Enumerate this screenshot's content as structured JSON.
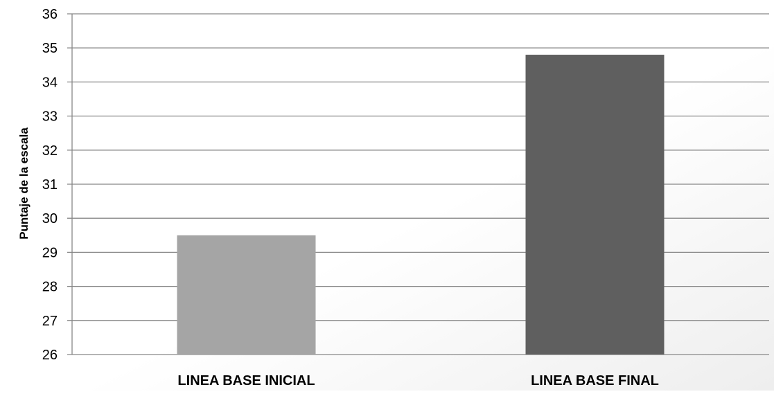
{
  "chart_data": {
    "type": "bar",
    "title": "",
    "xlabel": "",
    "ylabel": "Puntaje de la escala",
    "categories": [
      "LINEA BASE INICIAL",
      "LINEA BASE FINAL"
    ],
    "values": [
      29.5,
      34.8
    ],
    "bar_colors": [
      "#a5a5a5",
      "#5f5f5f"
    ],
    "ylim": [
      26,
      36
    ],
    "yticks": [
      "26",
      "27",
      "28",
      "29",
      "30",
      "31",
      "32",
      "33",
      "34",
      "35",
      "36"
    ],
    "grid": true,
    "legend": "none"
  }
}
